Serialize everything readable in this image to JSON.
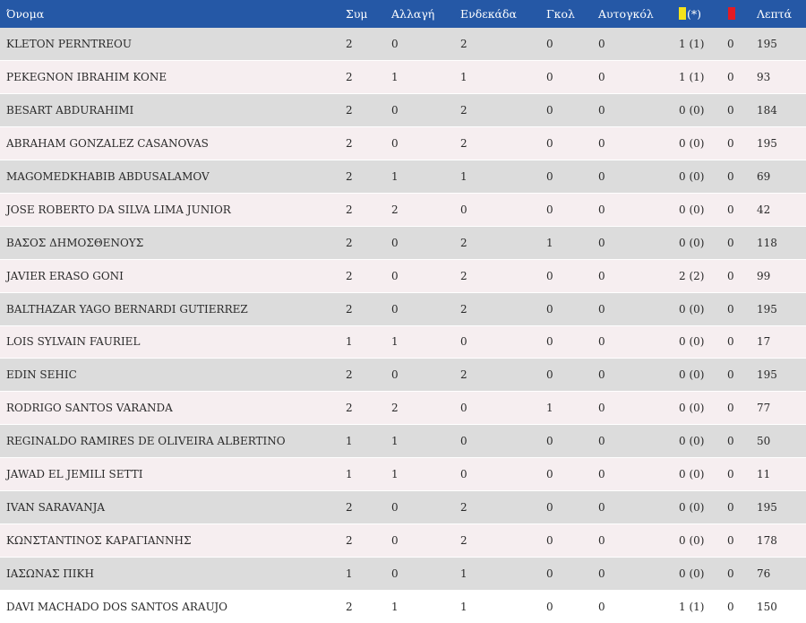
{
  "table": {
    "headers": {
      "name": "Όνομα",
      "appearances": "Συμ",
      "substitutions": "Αλλαγή",
      "starts": "Ενδεκάδα",
      "goals": "Γκολ",
      "own_goals": "Αυτογκόλ",
      "yellow_asterisk": "(*)",
      "minutes": "Λεπτά"
    },
    "colors": {
      "header_bg": "#2558a6",
      "row_odd": "#dcdcdc",
      "row_even": "#f6eef0",
      "yellow_card": "#f6e31b",
      "red_card": "#e31b23"
    },
    "icons": {
      "yellow_card": "yellow-card-icon",
      "red_card": "red-card-icon"
    },
    "rows": [
      {
        "name": "KLETON PERNTREOU",
        "apps": "2",
        "subs": "0",
        "starts": "2",
        "goals": "0",
        "own": "0",
        "yellow": "1 (1)",
        "red": "0",
        "minutes": "195"
      },
      {
        "name": "PEKEGNON IBRAHIM KONE",
        "apps": "2",
        "subs": "1",
        "starts": "1",
        "goals": "0",
        "own": "0",
        "yellow": "1 (1)",
        "red": "0",
        "minutes": "93"
      },
      {
        "name": "BESART ABDURAHIMI",
        "apps": "2",
        "subs": "0",
        "starts": "2",
        "goals": "0",
        "own": "0",
        "yellow": "0 (0)",
        "red": "0",
        "minutes": "184"
      },
      {
        "name": "ABRAHAM GONZALEZ CASANOVAS",
        "apps": "2",
        "subs": "0",
        "starts": "2",
        "goals": "0",
        "own": "0",
        "yellow": "0 (0)",
        "red": "0",
        "minutes": "195"
      },
      {
        "name": "MAGOMEDKHABIB ABDUSALAMOV",
        "apps": "2",
        "subs": "1",
        "starts": "1",
        "goals": "0",
        "own": "0",
        "yellow": "0 (0)",
        "red": "0",
        "minutes": "69"
      },
      {
        "name": "JOSE ROBERTO DA SILVA LIMA JUNIOR",
        "apps": "2",
        "subs": "2",
        "starts": "0",
        "goals": "0",
        "own": "0",
        "yellow": "0 (0)",
        "red": "0",
        "minutes": "42"
      },
      {
        "name": "ΒΑΣΟΣ ΔΗΜΟΣΘΕΝΟΥΣ",
        "apps": "2",
        "subs": "0",
        "starts": "2",
        "goals": "1",
        "own": "0",
        "yellow": "0 (0)",
        "red": "0",
        "minutes": "118"
      },
      {
        "name": "JAVIER ERASO GONI",
        "apps": "2",
        "subs": "0",
        "starts": "2",
        "goals": "0",
        "own": "0",
        "yellow": "2 (2)",
        "red": "0",
        "minutes": "99"
      },
      {
        "name": "BALTHAZAR YAGO BERNARDI GUTIERREZ",
        "apps": "2",
        "subs": "0",
        "starts": "2",
        "goals": "0",
        "own": "0",
        "yellow": "0 (0)",
        "red": "0",
        "minutes": "195"
      },
      {
        "name": "LOIS SYLVAIN FAURIEL",
        "apps": "1",
        "subs": "1",
        "starts": "0",
        "goals": "0",
        "own": "0",
        "yellow": "0 (0)",
        "red": "0",
        "minutes": "17"
      },
      {
        "name": "EDIN SEHIC",
        "apps": "2",
        "subs": "0",
        "starts": "2",
        "goals": "0",
        "own": "0",
        "yellow": "0 (0)",
        "red": "0",
        "minutes": "195"
      },
      {
        "name": "RODRIGO SANTOS VARANDA",
        "apps": "2",
        "subs": "2",
        "starts": "0",
        "goals": "1",
        "own": "0",
        "yellow": "0 (0)",
        "red": "0",
        "minutes": "77"
      },
      {
        "name": "REGINALDO RAMIRES DE OLIVEIRA ALBERTINO",
        "apps": "1",
        "subs": "1",
        "starts": "0",
        "goals": "0",
        "own": "0",
        "yellow": "0 (0)",
        "red": "0",
        "minutes": "50"
      },
      {
        "name": "JAWAD EL JEMILI SETTI",
        "apps": "1",
        "subs": "1",
        "starts": "0",
        "goals": "0",
        "own": "0",
        "yellow": "0 (0)",
        "red": "0",
        "minutes": "11"
      },
      {
        "name": "IVAN SARAVANJA",
        "apps": "2",
        "subs": "0",
        "starts": "2",
        "goals": "0",
        "own": "0",
        "yellow": "0 (0)",
        "red": "0",
        "minutes": "195"
      },
      {
        "name": "ΚΩΝΣΤΑΝΤΙΝΟΣ ΚΑΡΑΓΙΑΝΝΗΣ",
        "apps": "2",
        "subs": "0",
        "starts": "2",
        "goals": "0",
        "own": "0",
        "yellow": "0 (0)",
        "red": "0",
        "minutes": "178"
      },
      {
        "name": "ΙΑΣΩΝΑΣ ΠΙΚΗ",
        "apps": "1",
        "subs": "0",
        "starts": "1",
        "goals": "0",
        "own": "0",
        "yellow": "0 (0)",
        "red": "0",
        "minutes": "76"
      },
      {
        "name": "DAVI MACHADO DOS SANTOS ARAUJO",
        "apps": "2",
        "subs": "1",
        "starts": "1",
        "goals": "0",
        "own": "0",
        "yellow": "1 (1)",
        "red": "0",
        "minutes": "150"
      }
    ]
  }
}
